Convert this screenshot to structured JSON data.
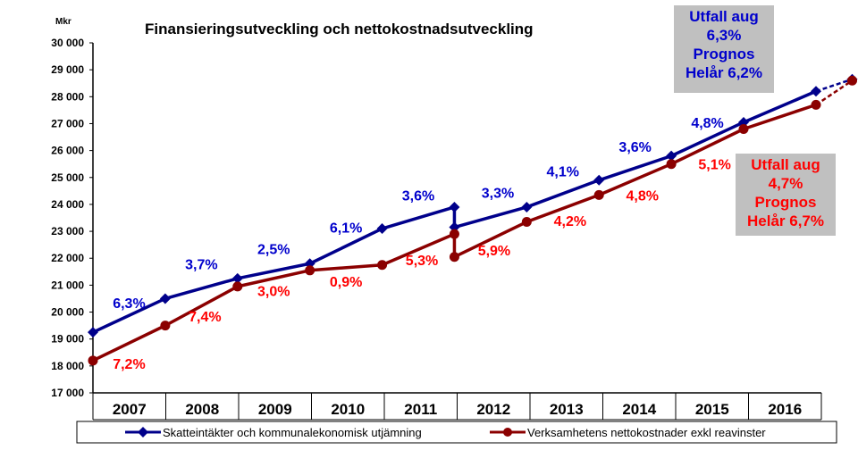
{
  "chart_data": {
    "type": "line",
    "title": "Finansieringsutveckling och nettokostnadsutveckling",
    "ylabel": "Mkr",
    "ylim": [
      17000,
      30000
    ],
    "ytick_step": 1000,
    "yticks": [
      "17 000",
      "18 000",
      "19 000",
      "20 000",
      "21 000",
      "22 000",
      "23 000",
      "24 000",
      "25 000",
      "26 000",
      "27 000",
      "28 000",
      "29 000",
      "30 000"
    ],
    "categories": [
      "2007",
      "2008",
      "2009",
      "2010",
      "2011",
      "2012",
      "2013",
      "2014",
      "2015",
      "2016"
    ],
    "series": [
      {
        "name": "Skatteintäkter och kommunalekonomisk utjämning",
        "color": "#00008b",
        "marker": "diamond",
        "points": [
          {
            "x": 0.0,
            "y": 19250
          },
          {
            "x": 1.0,
            "y": 20500
          },
          {
            "x": 2.0,
            "y": 21250
          },
          {
            "x": 3.0,
            "y": 21800
          },
          {
            "x": 4.0,
            "y": 23100
          },
          {
            "x": 5.0,
            "y": 23900
          },
          {
            "x": 5.0,
            "y": 23150
          },
          {
            "x": 6.0,
            "y": 23900
          },
          {
            "x": 7.0,
            "y": 24900
          },
          {
            "x": 8.0,
            "y": 25800
          },
          {
            "x": 9.0,
            "y": 27050
          },
          {
            "x": 10.0,
            "y": 28200
          }
        ],
        "forecast": {
          "x": 10.5,
          "y": 28650
        },
        "labels": [
          "6,3%",
          "3,7%",
          "2,5%",
          "6,1%",
          "3,6%",
          "3,3%",
          "4,1%",
          "3,6%",
          "4,8%"
        ],
        "label_color": "#0000cc"
      },
      {
        "name": "Verksamhetens nettokostnader exkl reavinster",
        "color": "#8b0000",
        "marker": "circle",
        "points": [
          {
            "x": 0.0,
            "y": 18200
          },
          {
            "x": 1.0,
            "y": 19500
          },
          {
            "x": 2.0,
            "y": 20950
          },
          {
            "x": 3.0,
            "y": 21550
          },
          {
            "x": 4.0,
            "y": 21750
          },
          {
            "x": 5.0,
            "y": 22900
          },
          {
            "x": 5.0,
            "y": 22050
          },
          {
            "x": 6.0,
            "y": 23350
          },
          {
            "x": 7.0,
            "y": 24350
          },
          {
            "x": 8.0,
            "y": 25500
          },
          {
            "x": 9.0,
            "y": 26800
          },
          {
            "x": 10.0,
            "y": 27700
          }
        ],
        "forecast": {
          "x": 10.5,
          "y": 28600
        },
        "labels": [
          "7,2%",
          "7,4%",
          "3,0%",
          "0,9%",
          "5,3%",
          "5,9%",
          "4,2%",
          "4,8%",
          "5,1%"
        ],
        "label_color": "#ff0000"
      }
    ],
    "label_anchors": {
      "Skatteintäkter och kommunalekonomisk utjämning": [
        {
          "x": 0.5,
          "y": 20150
        },
        {
          "x": 1.5,
          "y": 21600
        },
        {
          "x": 2.5,
          "y": 22150
        },
        {
          "x": 3.5,
          "y": 22950
        },
        {
          "x": 4.5,
          "y": 24150
        },
        {
          "x": 5.6,
          "y": 24250
        },
        {
          "x": 6.5,
          "y": 25050
        },
        {
          "x": 7.5,
          "y": 25950
        },
        {
          "x": 8.5,
          "y": 26850
        }
      ],
      "Verksamhetens nettokostnader exkl reavinster": [
        {
          "x": 0.5,
          "y": 17900
        },
        {
          "x": 1.55,
          "y": 19650
        },
        {
          "x": 2.5,
          "y": 20600
        },
        {
          "x": 3.5,
          "y": 20950
        },
        {
          "x": 4.55,
          "y": 21750
        },
        {
          "x": 5.55,
          "y": 22100
        },
        {
          "x": 6.6,
          "y": 23200
        },
        {
          "x": 7.6,
          "y": 24150
        },
        {
          "x": 8.6,
          "y": 25300
        }
      ]
    },
    "legend_position": "bottom",
    "grid": false
  },
  "callouts": {
    "blue": [
      "Utfall aug",
      "6,3%",
      "Prognos",
      "Helår 6,2%"
    ],
    "red": [
      "Utfall aug",
      "4,7%",
      "Prognos",
      "Helår 6,7%"
    ]
  }
}
